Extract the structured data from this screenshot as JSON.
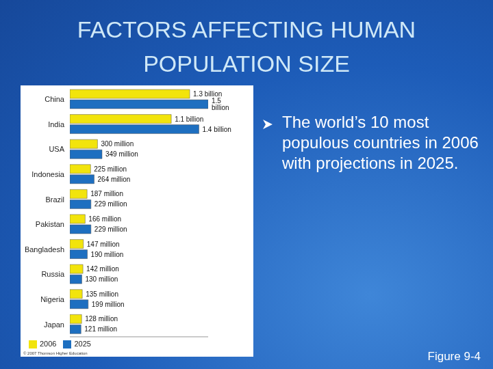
{
  "title": "FACTORS AFFECTING HUMAN POPULATION SIZE",
  "bullet": "The world’s 10 most populous countries in 2006 with projections in 2025.",
  "figure": "Figure 9-4",
  "copyright": "© 2007 Thomson Higher Education",
  "chart_data": {
    "type": "bar",
    "orientation": "horizontal",
    "categories": [
      "China",
      "India",
      "USA",
      "Indonesia",
      "Brazil",
      "Pakistan",
      "Bangladesh",
      "Russia",
      "Nigeria",
      "Japan"
    ],
    "series": [
      {
        "name": "2006",
        "color": "#f2e40c",
        "values": [
          1300,
          1100,
          300,
          225,
          187,
          166,
          147,
          142,
          135,
          128
        ],
        "value_labels": [
          "1.3 billion",
          "1.1 billion",
          "300 million",
          "225 million",
          "187 million",
          "166 million",
          "147 million",
          "142 million",
          "135 million",
          "128 million"
        ]
      },
      {
        "name": "2025",
        "color": "#1e6fc0",
        "values": [
          1500,
          1400,
          349,
          264,
          229,
          229,
          190,
          130,
          199,
          121
        ],
        "value_labels": [
          "1.5 billion",
          "1.4 billion",
          "349 million",
          "264 million",
          "229 million",
          "229 million",
          "190 million",
          "130 million",
          "199 million",
          "121 million"
        ]
      }
    ],
    "xlim": [
      0,
      1500
    ],
    "data_labels": true,
    "tick_labels": "y",
    "legend": "bottom",
    "grid": false
  }
}
